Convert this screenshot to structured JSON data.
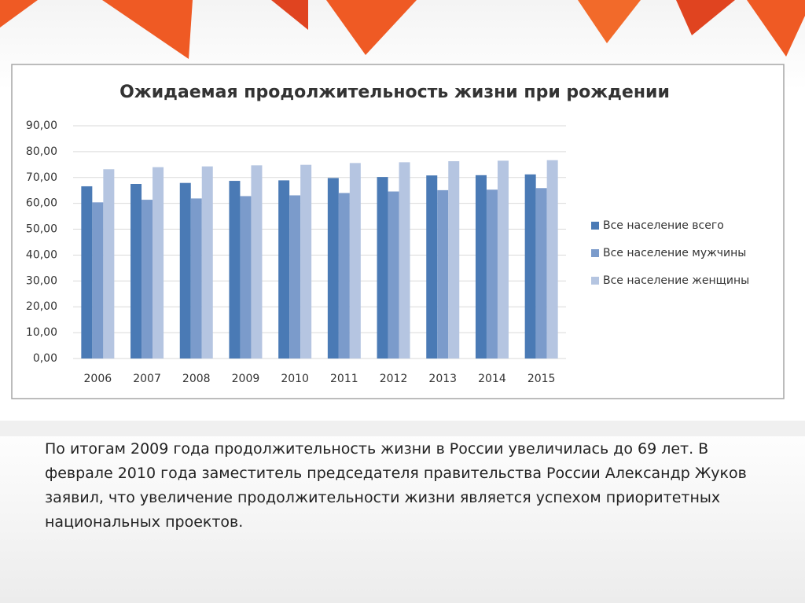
{
  "chart_data": {
    "type": "bar",
    "title": "Ожидаемая продолжительность жизни при рождении",
    "categories": [
      "2006",
      "2007",
      "2008",
      "2009",
      "2010",
      "2011",
      "2012",
      "2013",
      "2014",
      "2015"
    ],
    "series": [
      {
        "name": "Все население всего",
        "color": "#4a7ab5",
        "values": [
          66.6,
          67.5,
          67.9,
          68.7,
          68.9,
          69.8,
          70.2,
          70.8,
          70.9,
          71.2
        ]
      },
      {
        "name": "Все население мужчины",
        "color": "#7b9bcb",
        "values": [
          60.4,
          61.4,
          61.9,
          62.8,
          63.1,
          64.0,
          64.6,
          65.1,
          65.3,
          65.9
        ]
      },
      {
        "name": "Все население женщины",
        "color": "#b5c5e1",
        "values": [
          73.2,
          74.0,
          74.3,
          74.7,
          74.9,
          75.6,
          75.9,
          76.3,
          76.5,
          76.7
        ]
      }
    ],
    "ylim": [
      0,
      90
    ],
    "yticks": [
      {
        "value": 0,
        "label": "0,00"
      },
      {
        "value": 10,
        "label": "10,00"
      },
      {
        "value": 20,
        "label": "20,00"
      },
      {
        "value": 30,
        "label": "30,00"
      },
      {
        "value": 40,
        "label": "40,00"
      },
      {
        "value": 50,
        "label": "50,00"
      },
      {
        "value": 60,
        "label": "60,00"
      },
      {
        "value": 70,
        "label": "70,00"
      },
      {
        "value": 80,
        "label": "80,00"
      },
      {
        "value": 90,
        "label": "90,00"
      }
    ],
    "grid": true,
    "legend": "right"
  },
  "caption": "По итогам 2009 года продолжительность жизни в России увеличилась до 69 лет. В феврале 2010 года заместитель председателя правительства России Александр Жуков заявил, что увеличение продолжительности жизни является успехом приоритетных национальных проектов."
}
